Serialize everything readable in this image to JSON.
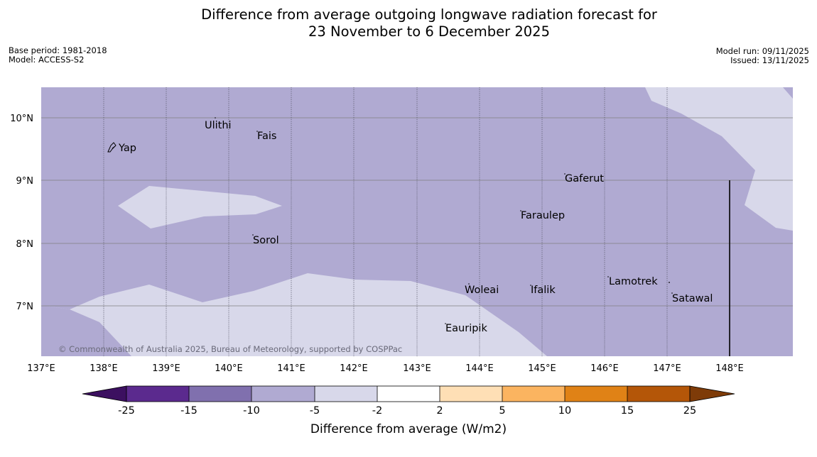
{
  "title": {
    "line1": "Difference from average outgoing longwave radiation forecast for",
    "line2": "23 November to 6 December 2025"
  },
  "meta_left": {
    "base_period": "Base period: 1981-2018",
    "model": "Model: ACCESS-S2"
  },
  "meta_right": {
    "model_run": "Model run: 09/11/2025",
    "issued": "Issued: 13/11/2025"
  },
  "map": {
    "latitude_labels": [
      "10°N",
      "9°N",
      "8°N",
      "7°N"
    ],
    "longitude_labels": [
      "137°E",
      "138°E",
      "139°E",
      "140°E",
      "141°E",
      "142°E",
      "143°E",
      "144°E",
      "145°E",
      "146°E",
      "147°E",
      "148°E"
    ],
    "places": [
      "Yap",
      "Ulithi",
      "Fais",
      "Gaferut",
      "Faraulep",
      "Sorol",
      "Woleai",
      "Ifalik",
      "Lamotrek",
      "Satawal",
      "Eauripik"
    ],
    "copyright": "© Commonwealth of Australia 2025, Bureau of Meteorology, supported by COSPPac",
    "colors": {
      "band_-10_-5": "#b0aad2",
      "band_-5_-2": "#d8d8ea",
      "gridline": "#808080"
    }
  },
  "colorbar": {
    "tick_labels": [
      "-25",
      "-15",
      "-10",
      "-5",
      "-2",
      "2",
      "5",
      "10",
      "15",
      "25"
    ],
    "label": "Difference from average (W/m2)",
    "colors": [
      "#3c1060",
      "#5b2a8e",
      "#8070ae",
      "#b0aad2",
      "#d8d8ea",
      "#ffffff",
      "#fedfb5",
      "#fbb460",
      "#e08216",
      "#b45608",
      "#7e3b08"
    ]
  }
}
